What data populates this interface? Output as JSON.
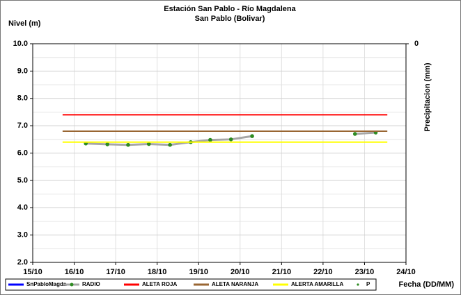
{
  "chart_data": {
    "type": "line",
    "title": "Estación San Pablo - Río Magdalena",
    "subtitle": "San Pablo (Bolivar)",
    "y_label": "Nivel (m)",
    "y2_label": "Precipitacion (mm)",
    "x_label": "Fecha (DD/MM)",
    "xlim": [
      15,
      24
    ],
    "xticks": [
      {
        "value": 15,
        "label": "15/10"
      },
      {
        "value": 16,
        "label": "16/10"
      },
      {
        "value": 17,
        "label": "17/10"
      },
      {
        "value": 18,
        "label": "18/10"
      },
      {
        "value": 19,
        "label": "19/10"
      },
      {
        "value": 20,
        "label": "20/10"
      },
      {
        "value": 21,
        "label": "21/10"
      },
      {
        "value": 22,
        "label": "22/10"
      },
      {
        "value": 23,
        "label": "23/10"
      },
      {
        "value": 24,
        "label": "24/10"
      }
    ],
    "ylim": [
      2,
      10
    ],
    "yticks": [
      {
        "value": 2,
        "label": "2.0"
      },
      {
        "value": 3,
        "label": "3.0"
      },
      {
        "value": 4,
        "label": "4.0"
      },
      {
        "value": 5,
        "label": "5.0"
      },
      {
        "value": 6,
        "label": "6.0"
      },
      {
        "value": 7,
        "label": "7.0"
      },
      {
        "value": 8,
        "label": "8.0"
      },
      {
        "value": 9,
        "label": "9.0"
      },
      {
        "value": 10,
        "label": "10.0"
      }
    ],
    "minor_yticks": [
      2.5,
      3.5,
      4.5,
      5.5,
      6.5,
      7.5,
      8.5,
      9.5
    ],
    "y2ticks": [
      0
    ],
    "grid": true,
    "series": [
      {
        "name": "SnPabloMagda",
        "color": "#0000ff",
        "x": [],
        "values": []
      },
      {
        "name": "RADIO",
        "color": "#a6a6a6",
        "marker_color": "#2e8b22",
        "x": [
          16.28,
          16.8,
          17.3,
          17.8,
          18.31,
          18.81,
          19.28,
          19.78,
          20.29,
          21.5,
          22.77,
          23.27
        ],
        "values": [
          6.35,
          6.32,
          6.3,
          6.33,
          6.3,
          6.4,
          6.48,
          6.5,
          6.62,
          null,
          6.7,
          6.75
        ]
      },
      {
        "name": "ALETA ROJA",
        "color": "#ff0000",
        "x": [
          15.72,
          23.55
        ],
        "values": [
          7.4,
          7.4
        ]
      },
      {
        "name": "ALETA NARANJA",
        "color": "#996633",
        "x": [
          15.72,
          23.55
        ],
        "values": [
          6.8,
          6.8
        ]
      },
      {
        "name": "ALERTA AMARILLA",
        "color": "#ffff00",
        "x": [
          15.72,
          23.55
        ],
        "values": [
          6.4,
          6.4
        ]
      },
      {
        "name": "P",
        "color": "#2e8b22",
        "x": [],
        "values": []
      }
    ]
  }
}
